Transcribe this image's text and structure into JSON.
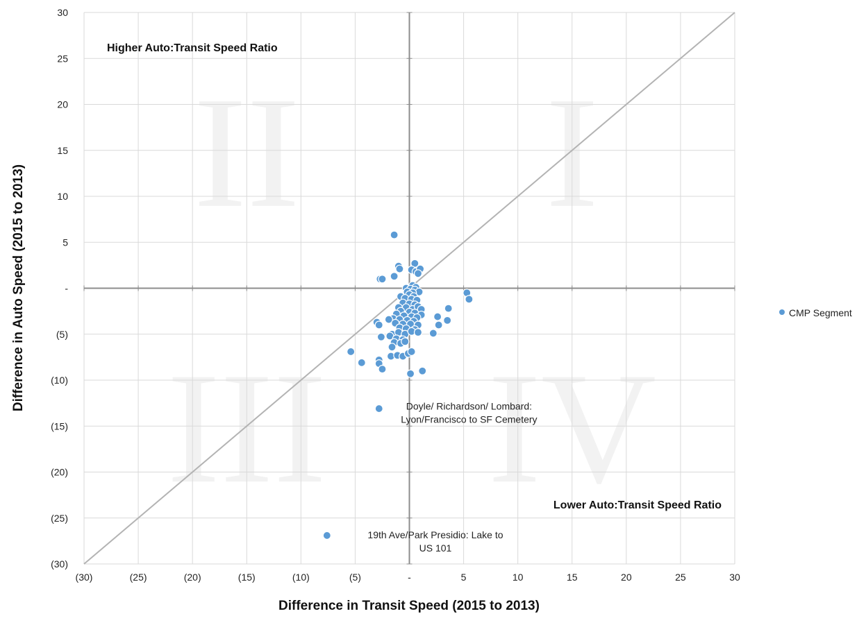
{
  "chart_data": {
    "type": "scatter",
    "xlabel": "Difference in Transit Speed (2015 to 2013)",
    "ylabel": "Difference in Auto Speed (2015 to 2013)",
    "xlim": [
      -30,
      30
    ],
    "ylim": [
      -30,
      30
    ],
    "x_ticks": [
      {
        "value": -30,
        "label": "(30)"
      },
      {
        "value": -25,
        "label": "(25)"
      },
      {
        "value": -20,
        "label": "(20)"
      },
      {
        "value": -15,
        "label": "(15)"
      },
      {
        "value": -10,
        "label": "(10)"
      },
      {
        "value": -5,
        "label": "(5)"
      },
      {
        "value": 0,
        "label": "-"
      },
      {
        "value": 5,
        "label": "5"
      },
      {
        "value": 10,
        "label": "10"
      },
      {
        "value": 15,
        "label": "15"
      },
      {
        "value": 20,
        "label": "20"
      },
      {
        "value": 25,
        "label": "25"
      },
      {
        "value": 30,
        "label": "30"
      }
    ],
    "y_ticks": [
      {
        "value": 30,
        "label": "30"
      },
      {
        "value": 25,
        "label": "25"
      },
      {
        "value": 20,
        "label": "20"
      },
      {
        "value": 15,
        "label": "15"
      },
      {
        "value": 10,
        "label": "10"
      },
      {
        "value": 5,
        "label": "5"
      },
      {
        "value": 0,
        "label": "-"
      },
      {
        "value": -5,
        "label": "(5)"
      },
      {
        "value": -10,
        "label": "(10)"
      },
      {
        "value": -15,
        "label": "(15)"
      },
      {
        "value": -20,
        "label": "(20)"
      },
      {
        "value": -25,
        "label": "(25)"
      },
      {
        "value": -30,
        "label": "(30)"
      }
    ],
    "grid": true,
    "legend_position": "right",
    "reference_line": {
      "x": [
        -30,
        30
      ],
      "y": [
        -30,
        30
      ]
    },
    "quadrant_labels": [
      {
        "text": "I",
        "x": 15,
        "y": 15
      },
      {
        "text": "II",
        "x": -15,
        "y": 15
      },
      {
        "text": "III",
        "x": -15,
        "y": -15
      },
      {
        "text": "IV",
        "x": 15,
        "y": -15
      }
    ],
    "notes": [
      {
        "text": "Higher Auto:Transit Speed Ratio",
        "anchor": "top-left"
      },
      {
        "text": "Lower Auto:Transit Speed Ratio",
        "anchor": "bottom-right"
      }
    ],
    "annotations": [
      {
        "lines": [
          "Doyle/ Richardson/ Lombard:",
          "Lyon/Francisco to SF Cemetery"
        ],
        "x": 5.5,
        "y": -13.2
      },
      {
        "lines": [
          "19th Ave/Park Presidio: Lake to",
          "US 101"
        ],
        "x": 2.4,
        "y": -27.2
      }
    ],
    "series": [
      {
        "name": "CMP Segment",
        "color": "#5b9bd5",
        "points": [
          [
            -1.4,
            5.8
          ],
          [
            -1.0,
            2.4
          ],
          [
            0.5,
            2.7
          ],
          [
            -0.9,
            2.1
          ],
          [
            0.2,
            2.0
          ],
          [
            0.6,
            1.8
          ],
          [
            1.0,
            2.1
          ],
          [
            0.8,
            1.6
          ],
          [
            -2.7,
            1.0
          ],
          [
            -2.5,
            1.0
          ],
          [
            -1.4,
            1.3
          ],
          [
            0.3,
            0.3
          ],
          [
            0.6,
            0.1
          ],
          [
            -0.3,
            0.0
          ],
          [
            0.1,
            -0.1
          ],
          [
            0.5,
            -0.2
          ],
          [
            0.9,
            -0.4
          ],
          [
            -0.2,
            -0.4
          ],
          [
            0.3,
            -0.5
          ],
          [
            -0.8,
            -0.9
          ],
          [
            0.0,
            -0.7
          ],
          [
            0.4,
            -0.9
          ],
          [
            -0.4,
            -1.1
          ],
          [
            0.2,
            -1.2
          ],
          [
            0.7,
            -1.3
          ],
          [
            -0.6,
            -1.6
          ],
          [
            0.0,
            -1.7
          ],
          [
            0.5,
            -1.8
          ],
          [
            -1.0,
            -2.1
          ],
          [
            -0.3,
            -2.1
          ],
          [
            0.3,
            -2.3
          ],
          [
            0.8,
            -2.0
          ],
          [
            1.1,
            -2.3
          ],
          [
            -0.8,
            -2.5
          ],
          [
            0.0,
            -2.6
          ],
          [
            0.5,
            -2.7
          ],
          [
            1.1,
            -2.9
          ],
          [
            -1.2,
            -2.8
          ],
          [
            -0.5,
            -3.0
          ],
          [
            0.2,
            -3.1
          ],
          [
            0.7,
            -3.2
          ],
          [
            -1.5,
            -3.3
          ],
          [
            -0.9,
            -3.4
          ],
          [
            -0.2,
            -3.5
          ],
          [
            0.4,
            -3.6
          ],
          [
            -1.9,
            -3.4
          ],
          [
            -1.3,
            -3.8
          ],
          [
            -0.6,
            -3.9
          ],
          [
            0.1,
            -3.9
          ],
          [
            0.8,
            -4.0
          ],
          [
            -3.0,
            -3.7
          ],
          [
            -2.8,
            -4.0
          ],
          [
            -0.9,
            -4.3
          ],
          [
            -0.3,
            -4.4
          ],
          [
            0.5,
            -4.5
          ],
          [
            -1.6,
            -5.0
          ],
          [
            -1.0,
            -4.8
          ],
          [
            -0.4,
            -5.0
          ],
          [
            0.2,
            -4.7
          ],
          [
            0.8,
            -4.8
          ],
          [
            -2.6,
            -5.3
          ],
          [
            -1.8,
            -5.2
          ],
          [
            -1.2,
            -5.5
          ],
          [
            -0.6,
            -5.6
          ],
          [
            -1.4,
            -5.9
          ],
          [
            -0.8,
            -6.0
          ],
          [
            -0.4,
            -5.8
          ],
          [
            -1.6,
            -6.4
          ],
          [
            -5.4,
            -6.9
          ],
          [
            -4.4,
            -8.1
          ],
          [
            -2.8,
            -7.8
          ],
          [
            -2.8,
            -8.2
          ],
          [
            -2.5,
            -8.8
          ],
          [
            -1.7,
            -7.4
          ],
          [
            -1.1,
            -7.3
          ],
          [
            -0.6,
            -7.4
          ],
          [
            -0.1,
            -7.1
          ],
          [
            0.2,
            -6.9
          ],
          [
            1.2,
            -9.0
          ],
          [
            0.1,
            -9.3
          ],
          [
            -2.8,
            -13.1
          ],
          [
            -7.6,
            -26.9
          ],
          [
            5.3,
            -0.5
          ],
          [
            5.5,
            -1.2
          ],
          [
            3.6,
            -2.2
          ],
          [
            2.6,
            -3.1
          ],
          [
            3.5,
            -3.5
          ],
          [
            2.7,
            -4.0
          ],
          [
            2.2,
            -4.9
          ]
        ]
      }
    ]
  }
}
